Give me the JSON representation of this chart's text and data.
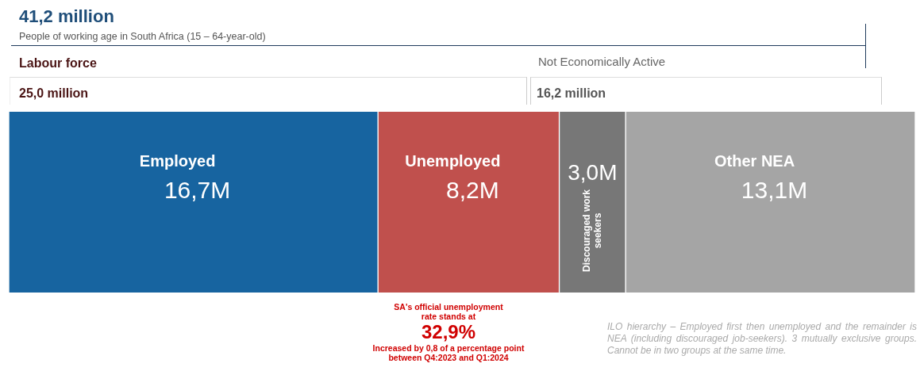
{
  "chart_data": {
    "type": "bar",
    "orientation": "horizontal",
    "stacked": true,
    "title": "41,2 million",
    "subtitle": "People of working age in South Africa (15 – 64-year-old)",
    "categories": [
      null
    ],
    "series": [
      {
        "name": "Employed",
        "color": "#1764a0",
        "values": [
          16.7
        ],
        "value_labels": [
          "16,7M"
        ]
      },
      {
        "name": "Unemployed",
        "color": "#c0504d",
        "values": [
          8.2
        ],
        "value_labels": [
          "8,2M"
        ]
      },
      {
        "name": "Discouraged work seekers",
        "color": "#777777",
        "values": [
          3.0
        ],
        "value_labels": [
          "3,0M"
        ]
      },
      {
        "name": "Other NEA",
        "color": "#a5a5a5",
        "values": [
          13.1
        ],
        "value_labels": [
          "13,1M"
        ]
      }
    ],
    "annotations": [
      "Labour force",
      "25,0 million",
      "Not Economically Active",
      "16,2 million",
      "SA's official unemployment rate stands at",
      "32,9%",
      "Increased by 0,8 of a percentage point between Q4:2023 and Q1:2024",
      "ILO hierarchy – Employed first then unemployed and the remainder is NEA (including discouraged job-seekers). 3 mutually exclusive groups. Cannot be in two groups at the same time."
    ],
    "legend": false,
    "tick_labels": false
  }
}
